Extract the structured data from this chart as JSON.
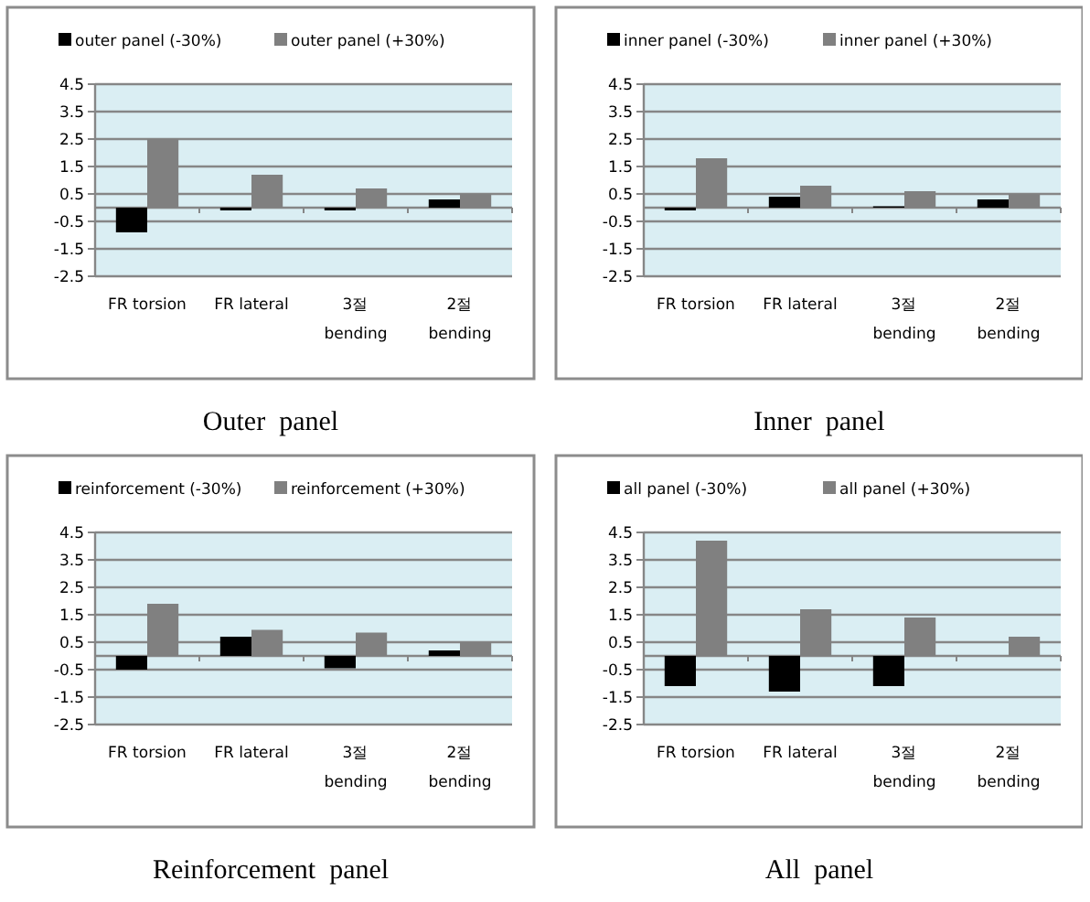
{
  "chart_data": [
    {
      "type": "bar",
      "title": "Outer  panel",
      "categories": [
        "FR torsion",
        "FR lateral",
        "3절\nbending",
        "2절\nbending"
      ],
      "series": [
        {
          "name": "outer panel (-30%)",
          "color": "#000000",
          "values": [
            -0.9,
            -0.1,
            -0.1,
            0.3
          ]
        },
        {
          "name": "outer panel (+30%)",
          "color": "#808080",
          "values": [
            2.5,
            1.2,
            0.7,
            0.5
          ]
        }
      ],
      "ylim": [
        -2.5,
        4.5
      ],
      "yticks": [
        -2.5,
        -1.5,
        -0.5,
        0.5,
        1.5,
        2.5,
        3.5,
        4.5
      ],
      "grid": "y",
      "legend": "top"
    },
    {
      "type": "bar",
      "title": "Inner  panel",
      "categories": [
        "FR torsion",
        "FR lateral",
        "3절\nbending",
        "2절\nbending"
      ],
      "series": [
        {
          "name": "inner panel (-30%)",
          "color": "#000000",
          "values": [
            -0.1,
            0.4,
            0.05,
            0.3
          ]
        },
        {
          "name": "inner panel (+30%)",
          "color": "#808080",
          "values": [
            1.8,
            0.8,
            0.6,
            0.5
          ]
        }
      ],
      "ylim": [
        -2.5,
        4.5
      ],
      "yticks": [
        -2.5,
        -1.5,
        -0.5,
        0.5,
        1.5,
        2.5,
        3.5,
        4.5
      ],
      "grid": "y",
      "legend": "top"
    },
    {
      "type": "bar",
      "title": "Reinforcement  panel",
      "categories": [
        "FR torsion",
        "FR lateral",
        "3절\nbending",
        "2절\nbending"
      ],
      "series": [
        {
          "name": "reinforcement (-30%)",
          "color": "#000000",
          "values": [
            -0.5,
            0.7,
            -0.45,
            0.2
          ]
        },
        {
          "name": "reinforcement (+30%)",
          "color": "#808080",
          "values": [
            1.9,
            0.95,
            0.85,
            0.5
          ]
        }
      ],
      "ylim": [
        -2.5,
        4.5
      ],
      "yticks": [
        -2.5,
        -1.5,
        -0.5,
        0.5,
        1.5,
        2.5,
        3.5,
        4.5
      ],
      "grid": "y",
      "legend": "top"
    },
    {
      "type": "bar",
      "title": "All  panel",
      "categories": [
        "FR torsion",
        "FR lateral",
        "3절\nbending",
        "2절\nbending"
      ],
      "series": [
        {
          "name": "all panel  (-30%)",
          "color": "#000000",
          "values": [
            -1.1,
            -1.3,
            -1.1,
            0
          ]
        },
        {
          "name": "all panel  (+30%)",
          "color": "#808080",
          "values": [
            4.2,
            1.7,
            1.4,
            0.7
          ]
        }
      ],
      "ylim": [
        -2.5,
        4.5
      ],
      "yticks": [
        -2.5,
        -1.5,
        -0.5,
        0.5,
        1.5,
        2.5,
        3.5,
        4.5
      ],
      "grid": "y",
      "legend": "top"
    }
  ]
}
